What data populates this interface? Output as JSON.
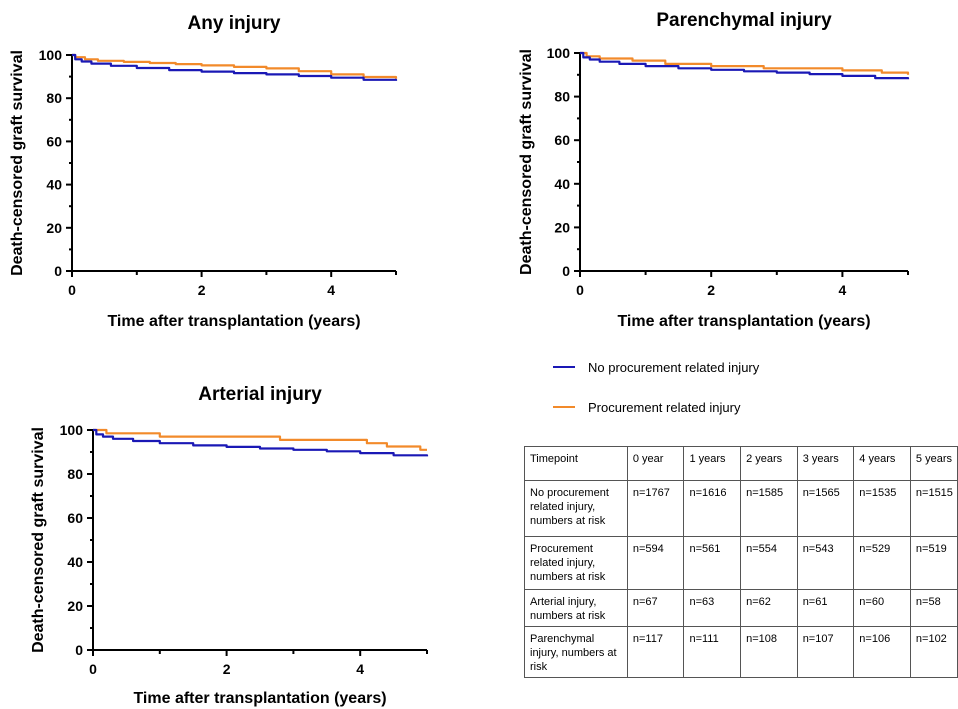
{
  "colors": {
    "no_injury": "#1a18b5",
    "injury": "#f28a2a"
  },
  "legend": [
    {
      "label": "No procurement related injury",
      "color": "#1a18b5"
    },
    {
      "label": "Procurement related injury",
      "color": "#f28a2a"
    }
  ],
  "chart_data": [
    {
      "type": "line",
      "title": "Any injury",
      "xlabel": "Time after transplantation (years)",
      "ylabel": "Death-censored graft survival",
      "xlim": [
        0,
        5
      ],
      "ylim": [
        0,
        100
      ],
      "xticks": [
        0,
        2,
        4
      ],
      "yticks": [
        0,
        20,
        40,
        60,
        80,
        100
      ],
      "series": [
        {
          "name": "No procurement related injury",
          "color": "#1a18b5",
          "x": [
            0,
            0.05,
            0.15,
            0.3,
            0.6,
            1,
            1.5,
            2,
            2.5,
            3,
            3.5,
            4,
            4.5,
            5
          ],
          "y": [
            100,
            98,
            97,
            96,
            95,
            94,
            93,
            92.3,
            91.6,
            91,
            90.3,
            89.5,
            88.5,
            88
          ]
        },
        {
          "name": "Procurement related injury",
          "color": "#f28a2a",
          "x": [
            0,
            0.05,
            0.2,
            0.4,
            0.8,
            1.2,
            1.6,
            2,
            2.5,
            3,
            3.5,
            4,
            4.5,
            5
          ],
          "y": [
            100,
            99,
            98,
            97.3,
            96.8,
            96.3,
            95.8,
            95.2,
            94.5,
            93.8,
            92.5,
            91,
            89.8,
            89
          ]
        }
      ]
    },
    {
      "type": "line",
      "title": "Parenchymal injury",
      "xlabel": "Time after transplantation (years)",
      "ylabel": "Death-censored graft survival",
      "xlim": [
        0,
        5
      ],
      "ylim": [
        0,
        100
      ],
      "xticks": [
        0,
        2,
        4
      ],
      "yticks": [
        0,
        20,
        40,
        60,
        80,
        100
      ],
      "series": [
        {
          "name": "No procurement related injury",
          "color": "#1a18b5",
          "x": [
            0,
            0.05,
            0.15,
            0.3,
            0.6,
            1,
            1.5,
            2,
            2.5,
            3,
            3.5,
            4,
            4.5,
            5
          ],
          "y": [
            100,
            98,
            97,
            96,
            95,
            94,
            93,
            92.3,
            91.6,
            91,
            90.3,
            89.5,
            88.5,
            88
          ]
        },
        {
          "name": "Procurement related injury",
          "color": "#f28a2a",
          "x": [
            0,
            0.1,
            0.3,
            0.8,
            1.3,
            2.0,
            2.8,
            4.0,
            4.6,
            5
          ],
          "y": [
            100,
            98.5,
            97.5,
            96.5,
            95,
            94,
            93,
            92,
            91,
            90
          ]
        }
      ]
    },
    {
      "type": "line",
      "title": "Arterial injury",
      "xlabel": "Time after transplantation (years)",
      "ylabel": "Death-censored graft survival",
      "xlim": [
        0,
        5
      ],
      "ylim": [
        0,
        100
      ],
      "xticks": [
        0,
        2,
        4
      ],
      "yticks": [
        0,
        20,
        40,
        60,
        80,
        100
      ],
      "series": [
        {
          "name": "No procurement related injury",
          "color": "#1a18b5",
          "x": [
            0,
            0.05,
            0.15,
            0.3,
            0.6,
            1,
            1.5,
            2,
            2.5,
            3,
            3.5,
            4,
            4.5,
            5
          ],
          "y": [
            100,
            98,
            97,
            96,
            95,
            94,
            93,
            92.3,
            91.6,
            91,
            90.3,
            89.5,
            88.5,
            88
          ]
        },
        {
          "name": "Procurement related injury",
          "color": "#f28a2a",
          "x": [
            0,
            0.2,
            1.0,
            2.8,
            4.1,
            4.4,
            4.9,
            5
          ],
          "y": [
            100,
            98.5,
            97,
            95.5,
            94,
            92.5,
            91,
            91
          ]
        }
      ]
    }
  ],
  "risk_table": {
    "header": [
      "Timepoint",
      "0 year",
      "1 years",
      "2 years",
      "3 years",
      "4 years",
      "5 years"
    ],
    "rows": [
      [
        "No procurement related injury, numbers at risk",
        "n=1767",
        "n=1616",
        "n=1585",
        "n=1565",
        "n=1535",
        "n=1515"
      ],
      [
        "Procurement related injury, numbers at risk",
        "n=594",
        "n=561",
        "n=554",
        "n=543",
        "n=529",
        "n=519"
      ],
      [
        "Arterial injury, numbers at risk",
        "n=67",
        "n=63",
        "n=62",
        "n=61",
        "n=60",
        "n=58"
      ],
      [
        "Parenchymal injury, numbers at risk",
        "n=117",
        "n=111",
        "n=108",
        "n=107",
        "n=106",
        "n=102"
      ]
    ]
  }
}
